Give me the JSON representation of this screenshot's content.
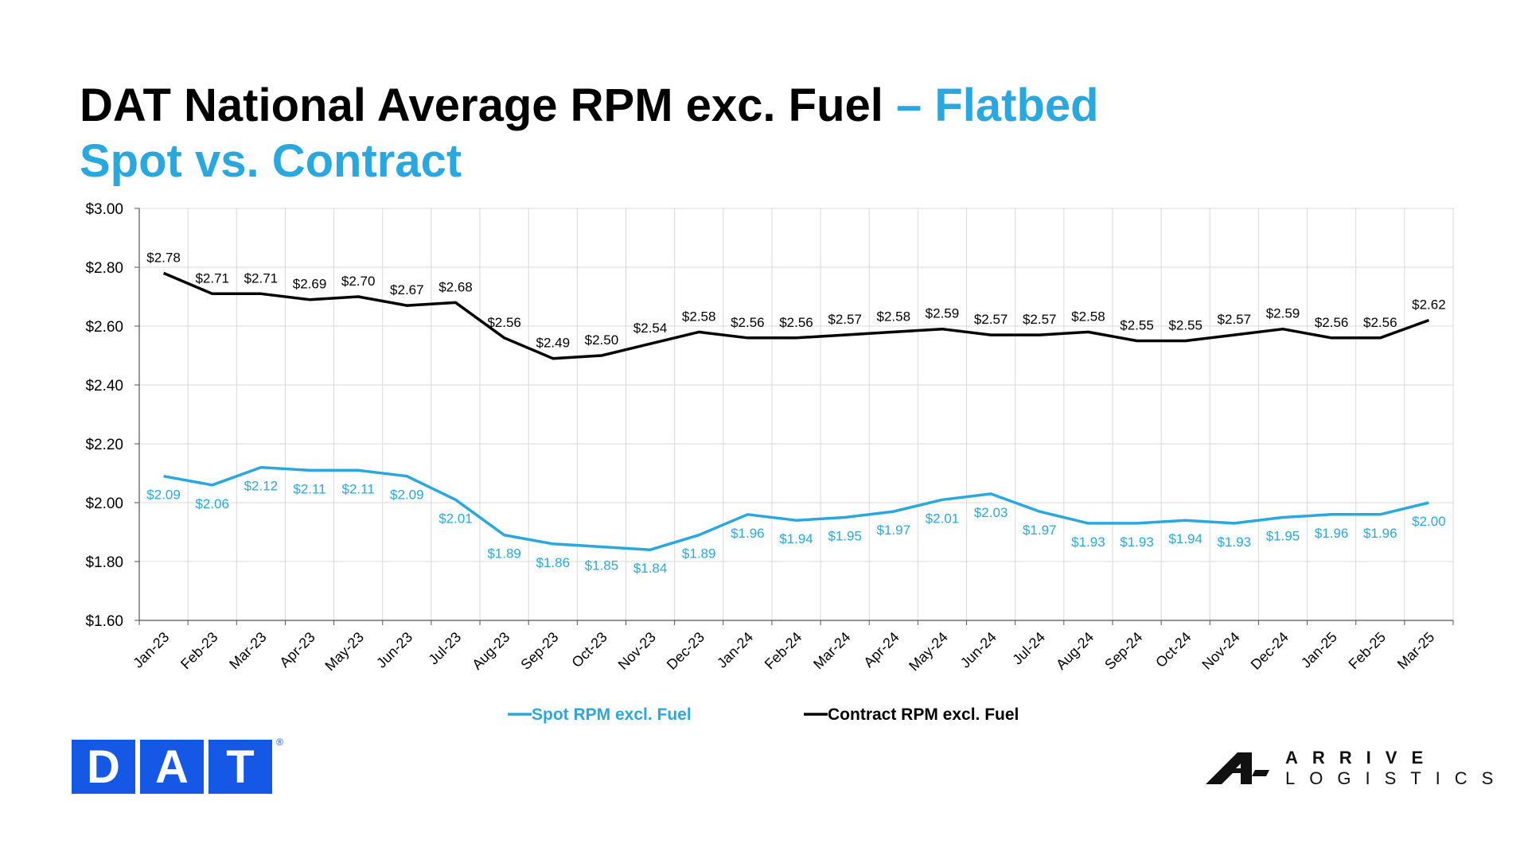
{
  "title": "DAT National Average RPM exc. Fuel",
  "title_accent": "– Flatbed",
  "subtitle": "Spot vs. Contract",
  "logos": {
    "dat": [
      "D",
      "A",
      "T"
    ],
    "dat_reg": "®",
    "arrive_line1": "ARRIVE",
    "arrive_line2": "LOGISTICS"
  },
  "colors": {
    "spot": "#29a8e0",
    "contract": "#000000",
    "dat_blue": "#1558e6"
  },
  "chart_data": {
    "type": "line",
    "categories": [
      "Jan-23",
      "Feb-23",
      "Mar-23",
      "Apr-23",
      "May-23",
      "Jun-23",
      "Jul-23",
      "Aug-23",
      "Sep-23",
      "Oct-23",
      "Nov-23",
      "Dec-23",
      "Jan-24",
      "Feb-24",
      "Mar-24",
      "Apr-24",
      "May-24",
      "Jun-24",
      "Jul-24",
      "Aug-24",
      "Sep-24",
      "Oct-24",
      "Nov-24",
      "Dec-24",
      "Jan-25",
      "Feb-25",
      "Mar-25"
    ],
    "ylim": [
      1.6,
      3.0
    ],
    "yticks": [
      "$1.60",
      "$1.80",
      "$2.00",
      "$2.20",
      "$2.40",
      "$2.60",
      "$2.80",
      "$3.00"
    ],
    "grid": true,
    "legend_position": "bottom",
    "series": [
      {
        "name": "Spot RPM excl. Fuel",
        "color": "#29a8e0",
        "values": [
          2.09,
          2.06,
          2.12,
          2.11,
          2.11,
          2.09,
          2.01,
          1.89,
          1.86,
          1.85,
          1.84,
          1.89,
          1.96,
          1.94,
          1.95,
          1.97,
          2.01,
          2.03,
          1.97,
          1.93,
          1.93,
          1.94,
          1.93,
          1.95,
          1.96,
          1.96,
          2.0
        ],
        "labels": [
          "$2.09",
          "$2.06",
          "$2.12",
          "$2.11",
          "$2.11",
          "$2.09",
          "$2.01",
          "$1.89",
          "$1.86",
          "$1.85",
          "$1.84",
          "$1.89",
          "$1.96",
          "$1.94",
          "$1.95",
          "$1.97",
          "$2.01",
          "$2.03",
          "$1.97",
          "$1.93",
          "$1.93",
          "$1.94",
          "$1.93",
          "$1.95",
          "$1.96",
          "$1.96",
          "$2.00"
        ]
      },
      {
        "name": "Contract RPM excl. Fuel",
        "color": "#000000",
        "values": [
          2.78,
          2.71,
          2.71,
          2.69,
          2.7,
          2.67,
          2.68,
          2.56,
          2.49,
          2.5,
          2.54,
          2.58,
          2.56,
          2.56,
          2.57,
          2.58,
          2.59,
          2.57,
          2.57,
          2.58,
          2.55,
          2.55,
          2.57,
          2.59,
          2.56,
          2.56,
          2.62
        ],
        "labels": [
          "$2.78",
          "$2.71",
          "$2.71",
          "$2.69",
          "$2.70",
          "$2.67",
          "$2.68",
          "$2.56",
          "$2.49",
          "$2.50",
          "$2.54",
          "$2.58",
          "$2.56",
          "$2.56",
          "$2.57",
          "$2.58",
          "$2.59",
          "$2.57",
          "$2.57",
          "$2.58",
          "$2.55",
          "$2.55",
          "$2.57",
          "$2.59",
          "$2.56",
          "$2.56",
          "$2.62"
        ]
      }
    ]
  }
}
